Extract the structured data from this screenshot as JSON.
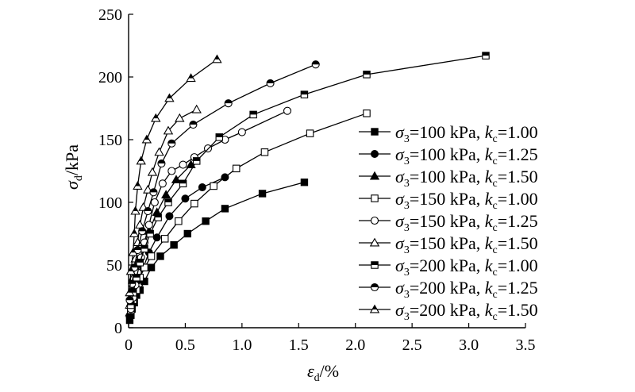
{
  "chart_data": {
    "type": "line",
    "title": "",
    "xlabel": {
      "main": "ε",
      "sub": "d",
      "rest": "/%"
    },
    "ylabel": {
      "main": "σ",
      "sub": "d",
      "rest": "/kPa"
    },
    "xlim": [
      0,
      3.5
    ],
    "ylim": [
      0,
      250
    ],
    "xticks": [
      "0",
      "0.5",
      "1.0",
      "1.5",
      "2.0",
      "2.5",
      "3.0",
      "3.5"
    ],
    "yticks": [
      "0",
      "50",
      "100",
      "150",
      "200",
      "250"
    ],
    "grid": false,
    "legend_position": "right",
    "series": [
      {
        "name": "σ3=100 kPa, kc=1.00",
        "label": {
          "sigma": "σ",
          "sigma_sub": "3",
          "pressure": "=100 kPa, ",
          "k": "k",
          "k_sub": "c",
          "ratio": "=1.00"
        },
        "marker": "square-filled",
        "points": [
          [
            0.01,
            6
          ],
          [
            0.02,
            10
          ],
          [
            0.03,
            15
          ],
          [
            0.05,
            20
          ],
          [
            0.07,
            26
          ],
          [
            0.1,
            30
          ],
          [
            0.14,
            37
          ],
          [
            0.2,
            48
          ],
          [
            0.28,
            57
          ],
          [
            0.4,
            66
          ],
          [
            0.52,
            75
          ],
          [
            0.68,
            85
          ],
          [
            0.85,
            95
          ],
          [
            1.18,
            107
          ],
          [
            1.55,
            116
          ]
        ]
      },
      {
        "name": "σ3=100 kPa, kc=1.25",
        "label": {
          "sigma": "σ",
          "sigma_sub": "3",
          "pressure": "=100 kPa, ",
          "k": "k",
          "k_sub": "c",
          "ratio": "=1.25"
        },
        "marker": "circle-filled",
        "points": [
          [
            0.01,
            9
          ],
          [
            0.02,
            15
          ],
          [
            0.04,
            22
          ],
          [
            0.06,
            30
          ],
          [
            0.09,
            38
          ],
          [
            0.13,
            48
          ],
          [
            0.18,
            60
          ],
          [
            0.25,
            72
          ],
          [
            0.36,
            89
          ],
          [
            0.5,
            103
          ],
          [
            0.65,
            112
          ],
          [
            0.85,
            120
          ]
        ]
      },
      {
        "name": "σ3=100 kPa, kc=1.50",
        "label": {
          "sigma": "σ",
          "sigma_sub": "3",
          "pressure": "=100 kPa, ",
          "k": "k",
          "k_sub": "c",
          "ratio": "=1.50"
        },
        "marker": "triangle-filled",
        "points": [
          [
            0.01,
            12
          ],
          [
            0.02,
            20
          ],
          [
            0.04,
            30
          ],
          [
            0.06,
            40
          ],
          [
            0.09,
            52
          ],
          [
            0.13,
            63
          ],
          [
            0.18,
            77
          ],
          [
            0.25,
            92
          ],
          [
            0.33,
            106
          ],
          [
            0.42,
            118
          ],
          [
            0.55,
            130
          ]
        ]
      },
      {
        "name": "σ3=150 kPa, kc=1.00",
        "label": {
          "sigma": "σ",
          "sigma_sub": "3",
          "pressure": "=150 kPa, ",
          "k": "k",
          "k_sub": "c",
          "ratio": "=1.00"
        },
        "marker": "square-open",
        "points": [
          [
            0.02,
            14
          ],
          [
            0.04,
            22
          ],
          [
            0.07,
            30
          ],
          [
            0.1,
            40
          ],
          [
            0.14,
            48
          ],
          [
            0.2,
            57
          ],
          [
            0.32,
            71
          ],
          [
            0.44,
            85
          ],
          [
            0.58,
            99
          ],
          [
            0.75,
            113
          ],
          [
            0.95,
            127
          ],
          [
            1.2,
            140
          ],
          [
            1.6,
            155
          ],
          [
            2.1,
            171
          ]
        ]
      },
      {
        "name": "σ3=150 kPa, kc=1.25",
        "label": {
          "sigma": "σ",
          "sigma_sub": "3",
          "pressure": "=150 kPa, ",
          "k": "k",
          "k_sub": "c",
          "ratio": "=1.25"
        },
        "marker": "circle-open",
        "points": [
          [
            0.02,
            15
          ],
          [
            0.04,
            24
          ],
          [
            0.06,
            34
          ],
          [
            0.08,
            44
          ],
          [
            0.11,
            56
          ],
          [
            0.14,
            68
          ],
          [
            0.18,
            82
          ],
          [
            0.23,
            100
          ],
          [
            0.3,
            115
          ],
          [
            0.38,
            125
          ],
          [
            0.48,
            130
          ],
          [
            0.58,
            136
          ],
          [
            0.7,
            143
          ],
          [
            0.85,
            150
          ],
          [
            1.0,
            156
          ],
          [
            1.4,
            173
          ]
        ]
      },
      {
        "name": "σ3=150 kPa, kc=1.50",
        "label": {
          "sigma": "σ",
          "sigma_sub": "3",
          "pressure": "=150 kPa, ",
          "k": "k",
          "k_sub": "c",
          "ratio": "=1.50"
        },
        "marker": "triangle-open",
        "points": [
          [
            0.01,
            18
          ],
          [
            0.02,
            28
          ],
          [
            0.04,
            40
          ],
          [
            0.06,
            55
          ],
          [
            0.08,
            68
          ],
          [
            0.1,
            82
          ],
          [
            0.13,
            96
          ],
          [
            0.17,
            110
          ],
          [
            0.21,
            124
          ],
          [
            0.27,
            140
          ],
          [
            0.35,
            157
          ],
          [
            0.45,
            167
          ],
          [
            0.6,
            174
          ]
        ]
      },
      {
        "name": "σ3=200 kPa, kc=1.00",
        "label": {
          "sigma": "σ",
          "sigma_sub": "3",
          "pressure": "=200 kPa, ",
          "k": "k",
          "k_sub": "c",
          "ratio": "=1.00"
        },
        "marker": "square-half",
        "points": [
          [
            0.02,
            18
          ],
          [
            0.04,
            28
          ],
          [
            0.07,
            40
          ],
          [
            0.1,
            52
          ],
          [
            0.14,
            63
          ],
          [
            0.19,
            75
          ],
          [
            0.26,
            88
          ],
          [
            0.35,
            100
          ],
          [
            0.48,
            115
          ],
          [
            0.6,
            133
          ],
          [
            0.8,
            152
          ],
          [
            1.1,
            170
          ],
          [
            1.55,
            186
          ],
          [
            2.1,
            202
          ],
          [
            3.15,
            217
          ]
        ]
      },
      {
        "name": "σ3=200 kPa, kc=1.25",
        "label": {
          "sigma": "σ",
          "sigma_sub": "3",
          "pressure": "=200 kPa, ",
          "k": "k",
          "k_sub": "c",
          "ratio": "=1.25"
        },
        "marker": "circle-half",
        "points": [
          [
            0.01,
            22
          ],
          [
            0.03,
            35
          ],
          [
            0.05,
            48
          ],
          [
            0.08,
            62
          ],
          [
            0.12,
            77
          ],
          [
            0.17,
            93
          ],
          [
            0.22,
            108
          ],
          [
            0.29,
            131
          ],
          [
            0.38,
            147
          ],
          [
            0.57,
            162
          ],
          [
            0.88,
            179
          ],
          [
            1.25,
            195
          ],
          [
            1.65,
            210
          ]
        ]
      },
      {
        "name": "σ3=200 kPa, kc=1.50",
        "label": {
          "sigma": "σ",
          "sigma_sub": "3",
          "pressure": "=200 kPa, ",
          "k": "k",
          "k_sub": "c",
          "ratio": "=1.50"
        },
        "marker": "triangle-half",
        "points": [
          [
            0.01,
            28
          ],
          [
            0.02,
            45
          ],
          [
            0.04,
            60
          ],
          [
            0.05,
            75
          ],
          [
            0.06,
            93
          ],
          [
            0.08,
            113
          ],
          [
            0.11,
            133
          ],
          [
            0.16,
            150
          ],
          [
            0.24,
            167
          ],
          [
            0.36,
            183
          ],
          [
            0.55,
            199
          ],
          [
            0.78,
            214
          ]
        ]
      }
    ]
  }
}
